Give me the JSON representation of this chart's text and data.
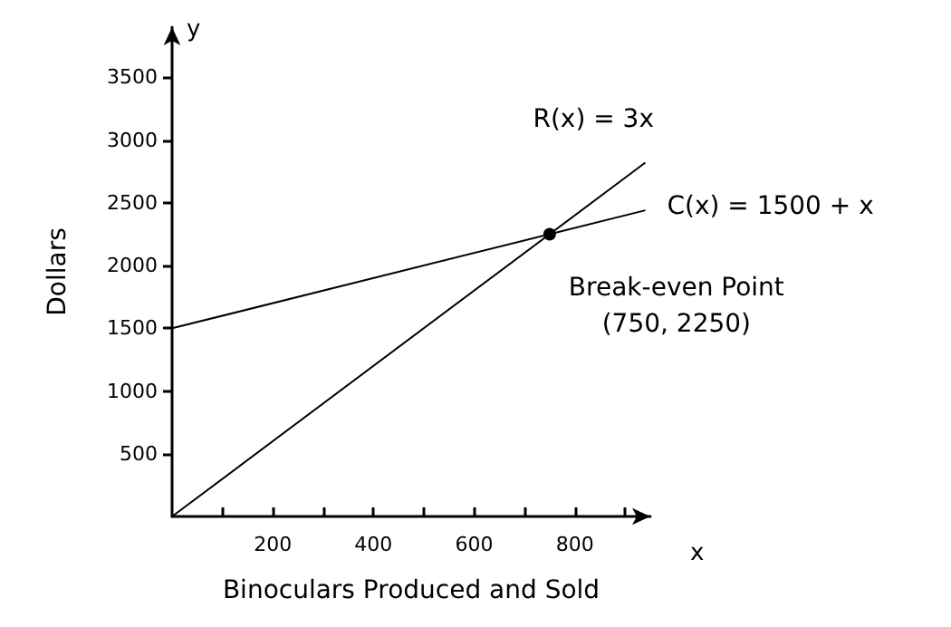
{
  "chart_data": {
    "type": "line",
    "xlabel": "Binoculars Produced and Sold",
    "ylabel": "Dollars",
    "series": [
      {
        "name": "R(x) = 3x",
        "color": "#000000",
        "x": [
          0,
          940
        ],
        "values": [
          0,
          2820
        ]
      },
      {
        "name": "C(x) = 1500 + x",
        "color": "#000000",
        "x": [
          0,
          940
        ],
        "values": [
          1500,
          2440
        ]
      },
      {
        "type": "scatter",
        "color": "#000000",
        "marker": "circle",
        "x": [
          750
        ],
        "values": [
          2250
        ]
      }
    ],
    "annotations": [
      {
        "text": "Break-even Point\n(750, 2250)",
        "x": 750,
        "y": 2250
      },
      "x",
      "y"
    ],
    "xlim": [
      0,
      950
    ],
    "ylim": [
      0,
      3900
    ],
    "xticks": [
      {
        "value": 100,
        "label": null
      },
      200,
      {
        "value": 300,
        "label": null
      },
      400,
      {
        "value": 500,
        "label": null
      },
      600,
      {
        "value": 700,
        "label": null
      },
      800,
      {
        "value": 900,
        "label": null
      }
    ],
    "yticks": [
      500,
      1000,
      1500,
      2000,
      2500,
      3000,
      3500
    ],
    "grid": false,
    "legend": false,
    "line_style": "solid"
  }
}
